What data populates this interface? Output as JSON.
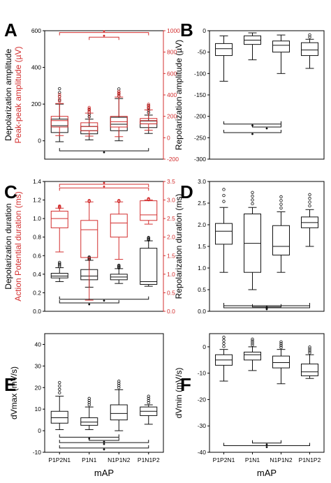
{
  "figure": {
    "xlabel": "mAP",
    "categories": [
      "P1P2N1",
      "P1N1",
      "N1P1N2",
      "P1N1P2"
    ],
    "colors": {
      "black": "#111111",
      "red": "#d32f2f",
      "grid": "#000000"
    }
  },
  "chart_data": [
    {
      "panel": "A",
      "type": "box",
      "ylabel": "Depolarization amplitude",
      "ylim": [
        -100,
        600
      ],
      "yticks": [
        0,
        200,
        400,
        600
      ],
      "y2label": "Peak-peak amplitude (µV)",
      "y2lim": [
        -200,
        1000
      ],
      "y2ticks": [
        -200,
        0,
        200,
        400,
        600,
        800,
        1000
      ],
      "series": [
        {
          "color": "black",
          "boxes": [
            {
              "cat": "P1P2N1",
              "q1": 45,
              "median": 82,
              "q3": 118,
              "whislo": -5,
              "whishi": 200
            },
            {
              "cat": "P1N1",
              "q1": 38,
              "median": 55,
              "q3": 78,
              "whislo": 5,
              "whishi": 118
            },
            {
              "cat": "N1P1N2",
              "q1": 55,
              "median": 90,
              "q3": 128,
              "whislo": 0,
              "whishi": 230
            },
            {
              "cat": "P1N1P2",
              "q1": 72,
              "median": 92,
              "q3": 108,
              "whislo": 40,
              "whishi": 140
            }
          ]
        },
        {
          "color": "red",
          "boxes": [
            {
              "cat": "P1P2N1",
              "q1": 100,
              "median": 160,
              "q3": 200,
              "whislo": 20,
              "whishi": 320
            },
            {
              "cat": "P1N1",
              "q1": 65,
              "median": 105,
              "q3": 140,
              "whislo": 15,
              "whishi": 230
            },
            {
              "cat": "N1P1N2",
              "q1": 100,
              "median": 150,
              "q3": 200,
              "whislo": 10,
              "whishi": 380
            },
            {
              "cat": "P1N1P2",
              "q1": 130,
              "median": 160,
              "q3": 180,
              "whislo": 70,
              "whishi": 260
            }
          ]
        }
      ]
    },
    {
      "panel": "B",
      "type": "box",
      "ylabel": "Repolarization amplitude (µV)",
      "ylim": [
        -300,
        0
      ],
      "yticks": [
        0,
        -50,
        -100,
        -150,
        -200,
        -250,
        -300
      ],
      "series": [
        {
          "color": "black",
          "boxes": [
            {
              "cat": "P1P2N1",
              "q1": -58,
              "median": -42,
              "q3": -30,
              "whislo": -118,
              "whishi": -12
            },
            {
              "cat": "P1N1",
              "q1": -32,
              "median": -22,
              "q3": -12,
              "whislo": -68,
              "whishi": -5
            },
            {
              "cat": "N1P1N2",
              "q1": -50,
              "median": -34,
              "q3": -24,
              "whislo": -100,
              "whishi": -10
            },
            {
              "cat": "P1N1P2",
              "q1": -58,
              "median": -45,
              "q3": -28,
              "whislo": -88,
              "whishi": -20
            }
          ]
        }
      ]
    },
    {
      "panel": "C",
      "type": "box",
      "ylabel": "Depolarization duration",
      "ylim": [
        0.0,
        1.4
      ],
      "yticks": [
        0.0,
        0.2,
        0.4,
        0.6,
        0.8,
        1.0,
        1.2,
        1.4
      ],
      "y2label": "Action Potential duration (ms)",
      "y2lim": [
        0.0,
        3.5
      ],
      "y2ticks": [
        0.0,
        0.5,
        1.0,
        1.5,
        2.0,
        2.5,
        3.0,
        3.5
      ],
      "series": [
        {
          "color": "black",
          "boxes": [
            {
              "cat": "P1P2N1",
              "q1": 0.36,
              "median": 0.38,
              "q3": 0.41,
              "whislo": 0.32,
              "whishi": 0.47
            },
            {
              "cat": "P1N1",
              "q1": 0.34,
              "median": 0.38,
              "q3": 0.45,
              "whislo": 0.26,
              "whishi": 0.55
            },
            {
              "cat": "N1P1N2",
              "q1": 0.34,
              "median": 0.37,
              "q3": 0.4,
              "whislo": 0.3,
              "whishi": 0.46
            },
            {
              "cat": "P1N1P2",
              "q1": 0.29,
              "median": 0.32,
              "q3": 0.68,
              "whislo": 0.27,
              "whishi": 0.76
            }
          ]
        },
        {
          "color": "red",
          "boxes": [
            {
              "cat": "P1P2N1",
              "q1": 2.25,
              "median": 2.5,
              "q3": 2.7,
              "whislo": 1.6,
              "whishi": 2.78
            },
            {
              "cat": "P1N1",
              "q1": 1.45,
              "median": 2.2,
              "q3": 2.45,
              "whislo": 0.3,
              "whishi": 2.95
            },
            {
              "cat": "N1P1N2",
              "q1": 2.0,
              "median": 2.38,
              "q3": 2.62,
              "whislo": 1.4,
              "whishi": 2.95
            },
            {
              "cat": "P1N1P2",
              "q1": 2.45,
              "median": 2.6,
              "q3": 2.98,
              "whislo": 2.35,
              "whishi": 3.0
            }
          ]
        }
      ]
    },
    {
      "panel": "D",
      "type": "box",
      "ylabel": "Repolarization duration (ms)",
      "ylim": [
        0.0,
        3.0
      ],
      "yticks": [
        0.0,
        0.5,
        1.0,
        1.5,
        2.0,
        2.5,
        3.0
      ],
      "series": [
        {
          "color": "black",
          "boxes": [
            {
              "cat": "P1P2N1",
              "q1": 1.55,
              "median": 1.85,
              "q3": 2.03,
              "whislo": 0.9,
              "whishi": 2.4
            },
            {
              "cat": "P1N1",
              "q1": 0.9,
              "median": 1.57,
              "q3": 2.25,
              "whislo": 0.5,
              "whishi": 2.4
            },
            {
              "cat": "N1P1N2",
              "q1": 1.3,
              "median": 1.5,
              "q3": 1.98,
              "whislo": 0.9,
              "whishi": 2.3
            },
            {
              "cat": "P1N1P2",
              "q1": 1.93,
              "median": 2.05,
              "q3": 2.18,
              "whislo": 1.5,
              "whishi": 2.35
            }
          ]
        }
      ]
    },
    {
      "panel": "E",
      "type": "box",
      "ylabel": "dVmax (mV/s)",
      "ylim": [
        -10,
        45
      ],
      "yticks": [
        -10,
        0,
        10,
        20,
        30,
        40
      ],
      "series": [
        {
          "color": "black",
          "boxes": [
            {
              "cat": "P1P2N1",
              "q1": 3.5,
              "median": 6,
              "q3": 9,
              "whislo": 0.5,
              "whishi": 16
            },
            {
              "cat": "P1N1",
              "q1": 2.5,
              "median": 4,
              "q3": 6,
              "whislo": 0.5,
              "whishi": 11
            },
            {
              "cat": "N1P1N2",
              "q1": 5,
              "median": 8,
              "q3": 12,
              "whislo": 0,
              "whishi": 19
            },
            {
              "cat": "P1N1P2",
              "q1": 7,
              "median": 9,
              "q3": 11,
              "whislo": 3,
              "whishi": 12
            }
          ]
        }
      ]
    },
    {
      "panel": "F",
      "type": "box",
      "ylabel": "dVmin (mV/s)",
      "ylim": [
        -40,
        5
      ],
      "yticks": [
        0,
        -10,
        -20,
        -30,
        -40
      ],
      "series": [
        {
          "color": "black",
          "boxes": [
            {
              "cat": "P1P2N1",
              "q1": -7,
              "median": -5,
              "q3": -3,
              "whislo": -13,
              "whishi": -1
            },
            {
              "cat": "P1N1",
              "q1": -5,
              "median": -3,
              "q3": -2,
              "whislo": -9,
              "whishi": 0
            },
            {
              "cat": "N1P1N2",
              "q1": -8,
              "median": -6,
              "q3": -3.5,
              "whislo": -14,
              "whishi": -1
            },
            {
              "cat": "P1N1P2",
              "q1": -11,
              "median": -9.5,
              "q3": -6.5,
              "whislo": -12,
              "whishi": -3
            }
          ]
        }
      ]
    }
  ]
}
